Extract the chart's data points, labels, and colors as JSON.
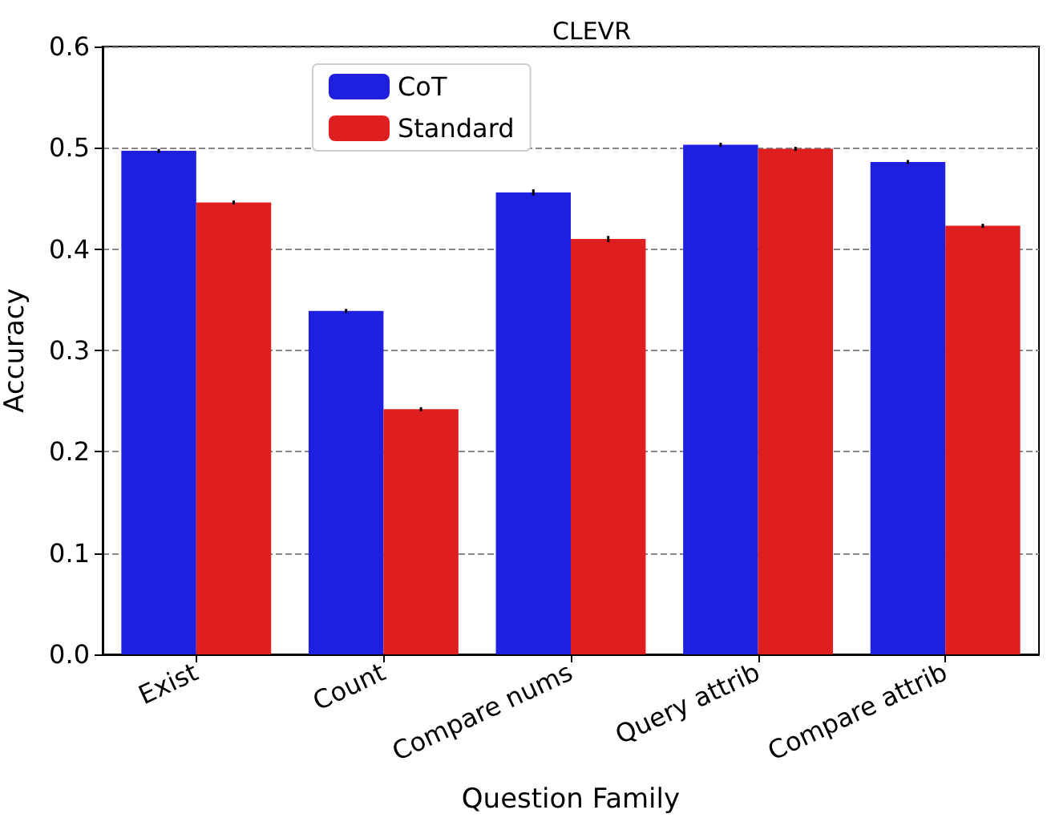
{
  "chart_data": {
    "type": "bar",
    "title": "CLEVR",
    "xlabel": "Question Family",
    "ylabel": "Accuracy",
    "categories": [
      "Exist",
      "Count",
      "Compare nums",
      "Query attrib",
      "Compare attrib"
    ],
    "series": [
      {
        "name": "CoT",
        "color": "#1f1fdf",
        "values": [
          0.497,
          0.339,
          0.456,
          0.503,
          0.486
        ],
        "errors": [
          0.002,
          0.002,
          0.003,
          0.002,
          0.002
        ]
      },
      {
        "name": "Standard",
        "color": "#df1f1f",
        "values": [
          0.446,
          0.242,
          0.41,
          0.499,
          0.423
        ],
        "errors": [
          0.002,
          0.002,
          0.003,
          0.002,
          0.002
        ]
      }
    ],
    "ylim": [
      0,
      0.6
    ],
    "yticks": [
      {
        "value": 0,
        "label": "0.0"
      },
      {
        "value": 0.1,
        "label": "0.1"
      },
      {
        "value": 0.2,
        "label": "0.2"
      },
      {
        "value": 0.3,
        "label": "0.3"
      },
      {
        "value": 0.4,
        "label": "0.4"
      },
      {
        "value": 0.5,
        "label": "0.5"
      },
      {
        "value": 0.6,
        "label": "0.6"
      }
    ],
    "grid": "y",
    "legend": "top left"
  }
}
